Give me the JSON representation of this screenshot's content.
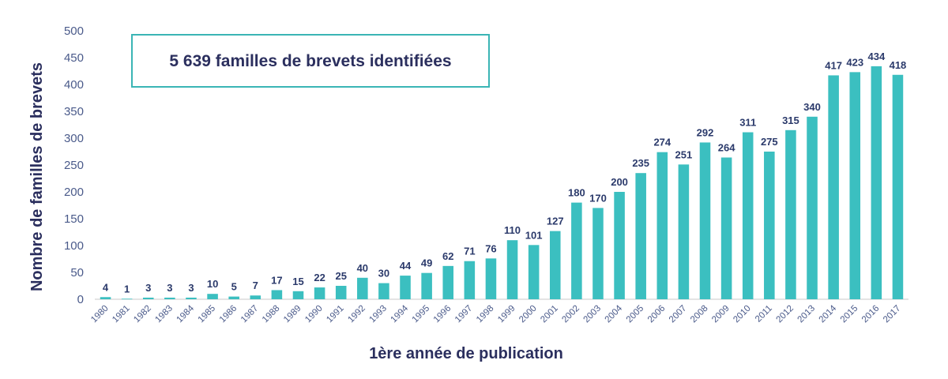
{
  "chart_data": {
    "type": "bar",
    "title": "",
    "annotation": "5 639 familles de brevets identifiées",
    "xlabel": "1ère année de publication",
    "ylabel": "Nombre de familles de brevets",
    "ylim": [
      0,
      500
    ],
    "yticks": [
      "0",
      "50",
      "100",
      "150",
      "200",
      "250",
      "300",
      "350",
      "400",
      "450",
      "500"
    ],
    "grid": false,
    "bar_color": "#3bbfc0",
    "annotation_border_color": "#3bb5b5",
    "categories": [
      "1980",
      "1981",
      "1982",
      "1983",
      "1984",
      "1985",
      "1986",
      "1987",
      "1988",
      "1989",
      "1990",
      "1991",
      "1992",
      "1993",
      "1994",
      "1995",
      "1996",
      "1997",
      "1998",
      "1999",
      "2000",
      "2001",
      "2002",
      "2003",
      "2004",
      "2005",
      "2006",
      "2007",
      "2008",
      "2009",
      "2010",
      "2011",
      "2012",
      "2013",
      "2014",
      "2015",
      "2016",
      "2017"
    ],
    "values": [
      4,
      1,
      3,
      3,
      3,
      10,
      5,
      7,
      17,
      15,
      22,
      25,
      40,
      30,
      44,
      49,
      62,
      71,
      76,
      110,
      101,
      127,
      180,
      170,
      200,
      235,
      274,
      251,
      292,
      264,
      311,
      275,
      315,
      340,
      417,
      423,
      434,
      418
    ]
  }
}
